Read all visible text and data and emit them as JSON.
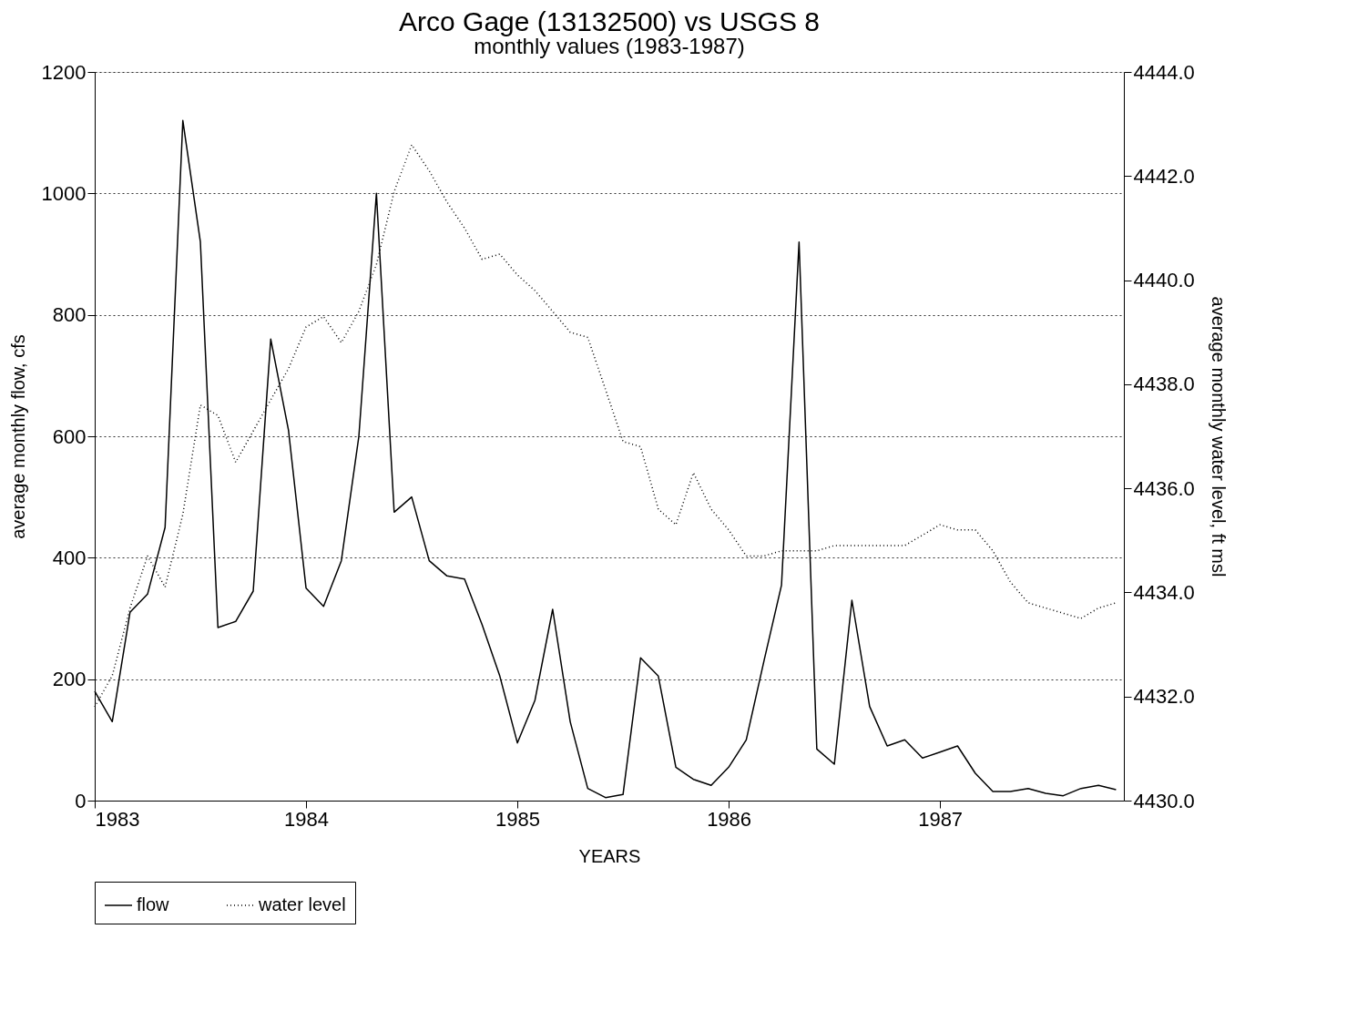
{
  "chart_data": {
    "type": "line",
    "title": "Arco Gage (13132500) vs USGS 8",
    "subtitle": "monthly values (1983-1987)",
    "xlabel": "YEARS",
    "ylabel": "average monthly flow,  cfs",
    "y2label": "average monthly water level,  ft msl",
    "x": [
      1983.0,
      1983.083,
      1983.167,
      1983.25,
      1983.333,
      1983.417,
      1983.5,
      1983.583,
      1983.667,
      1983.75,
      1983.833,
      1983.917,
      1984.0,
      1984.083,
      1984.167,
      1984.25,
      1984.333,
      1984.417,
      1984.5,
      1984.583,
      1984.667,
      1984.75,
      1984.833,
      1984.917,
      1985.0,
      1985.083,
      1985.167,
      1985.25,
      1985.333,
      1985.417,
      1985.5,
      1985.583,
      1985.667,
      1985.75,
      1985.833,
      1985.917,
      1986.0,
      1986.083,
      1986.167,
      1986.25,
      1986.333,
      1986.417,
      1986.5,
      1986.583,
      1986.667,
      1986.75,
      1986.833,
      1986.917,
      1987.0,
      1987.083,
      1987.167,
      1987.25,
      1987.333,
      1987.417,
      1987.5,
      1987.583,
      1987.667,
      1987.75,
      1987.833
    ],
    "series": [
      {
        "name": "flow",
        "color": "#000000",
        "line_style": "solid",
        "values": [
          180,
          130,
          310,
          340,
          450,
          1120,
          920,
          285,
          295,
          345,
          760,
          610,
          350,
          320,
          395,
          600,
          1000,
          475,
          500,
          395,
          370,
          365,
          290,
          205,
          95,
          165,
          315,
          130,
          20,
          5,
          10,
          235,
          205,
          55,
          35,
          25,
          55,
          100,
          230,
          355,
          920,
          85,
          60,
          330,
          155,
          90,
          100,
          70,
          80,
          90,
          45,
          15,
          15,
          20,
          12,
          8,
          20,
          25,
          18
        ]
      },
      {
        "name": "water level",
        "color": "#000000",
        "line_style": "dotted",
        "axis": "y2",
        "values": [
          4431.8,
          4432.4,
          4433.7,
          4434.7,
          4434.1,
          4435.5,
          4437.6,
          4437.4,
          4436.5,
          4437.1,
          4437.7,
          4438.3,
          4439.1,
          4439.3,
          4438.8,
          4439.4,
          4440.3,
          4441.7,
          4442.6,
          4442.1,
          4441.5,
          4441.0,
          4440.4,
          4440.5,
          4440.1,
          4439.8,
          4439.4,
          4439.0,
          4438.9,
          4437.9,
          4436.9,
          4436.8,
          4435.6,
          4435.3,
          4436.3,
          4435.6,
          4435.2,
          4434.7,
          4434.7,
          4434.8,
          4434.8,
          4434.8,
          4434.9,
          4434.9,
          4434.9,
          4434.9,
          4434.9,
          4435.1,
          4435.3,
          4435.2,
          4435.2,
          4434.8,
          4434.2,
          4433.8,
          4433.7,
          4433.6,
          4433.5,
          4433.7,
          4433.8
        ]
      }
    ],
    "xlim": [
      1983,
      1987.87
    ],
    "xticks": [
      1983,
      1984,
      1985,
      1986,
      1987
    ],
    "ylim": [
      0,
      1200
    ],
    "yticks": [
      0,
      200,
      400,
      600,
      800,
      1000,
      1200
    ],
    "y2lim": [
      4430,
      4444
    ],
    "y2ticks": [
      {
        "value": 4430,
        "label": "4430.0"
      },
      {
        "value": 4432,
        "label": "4432.0"
      },
      {
        "value": 4434,
        "label": "4434.0"
      },
      {
        "value": 4436,
        "label": "4436.0"
      },
      {
        "value": 4438,
        "label": "4438.0"
      },
      {
        "value": 4440,
        "label": "4440.0"
      },
      {
        "value": 4442,
        "label": "4442.0"
      },
      {
        "value": 4444,
        "label": "4444.0"
      }
    ],
    "grid": "y",
    "legend": "bottom"
  }
}
